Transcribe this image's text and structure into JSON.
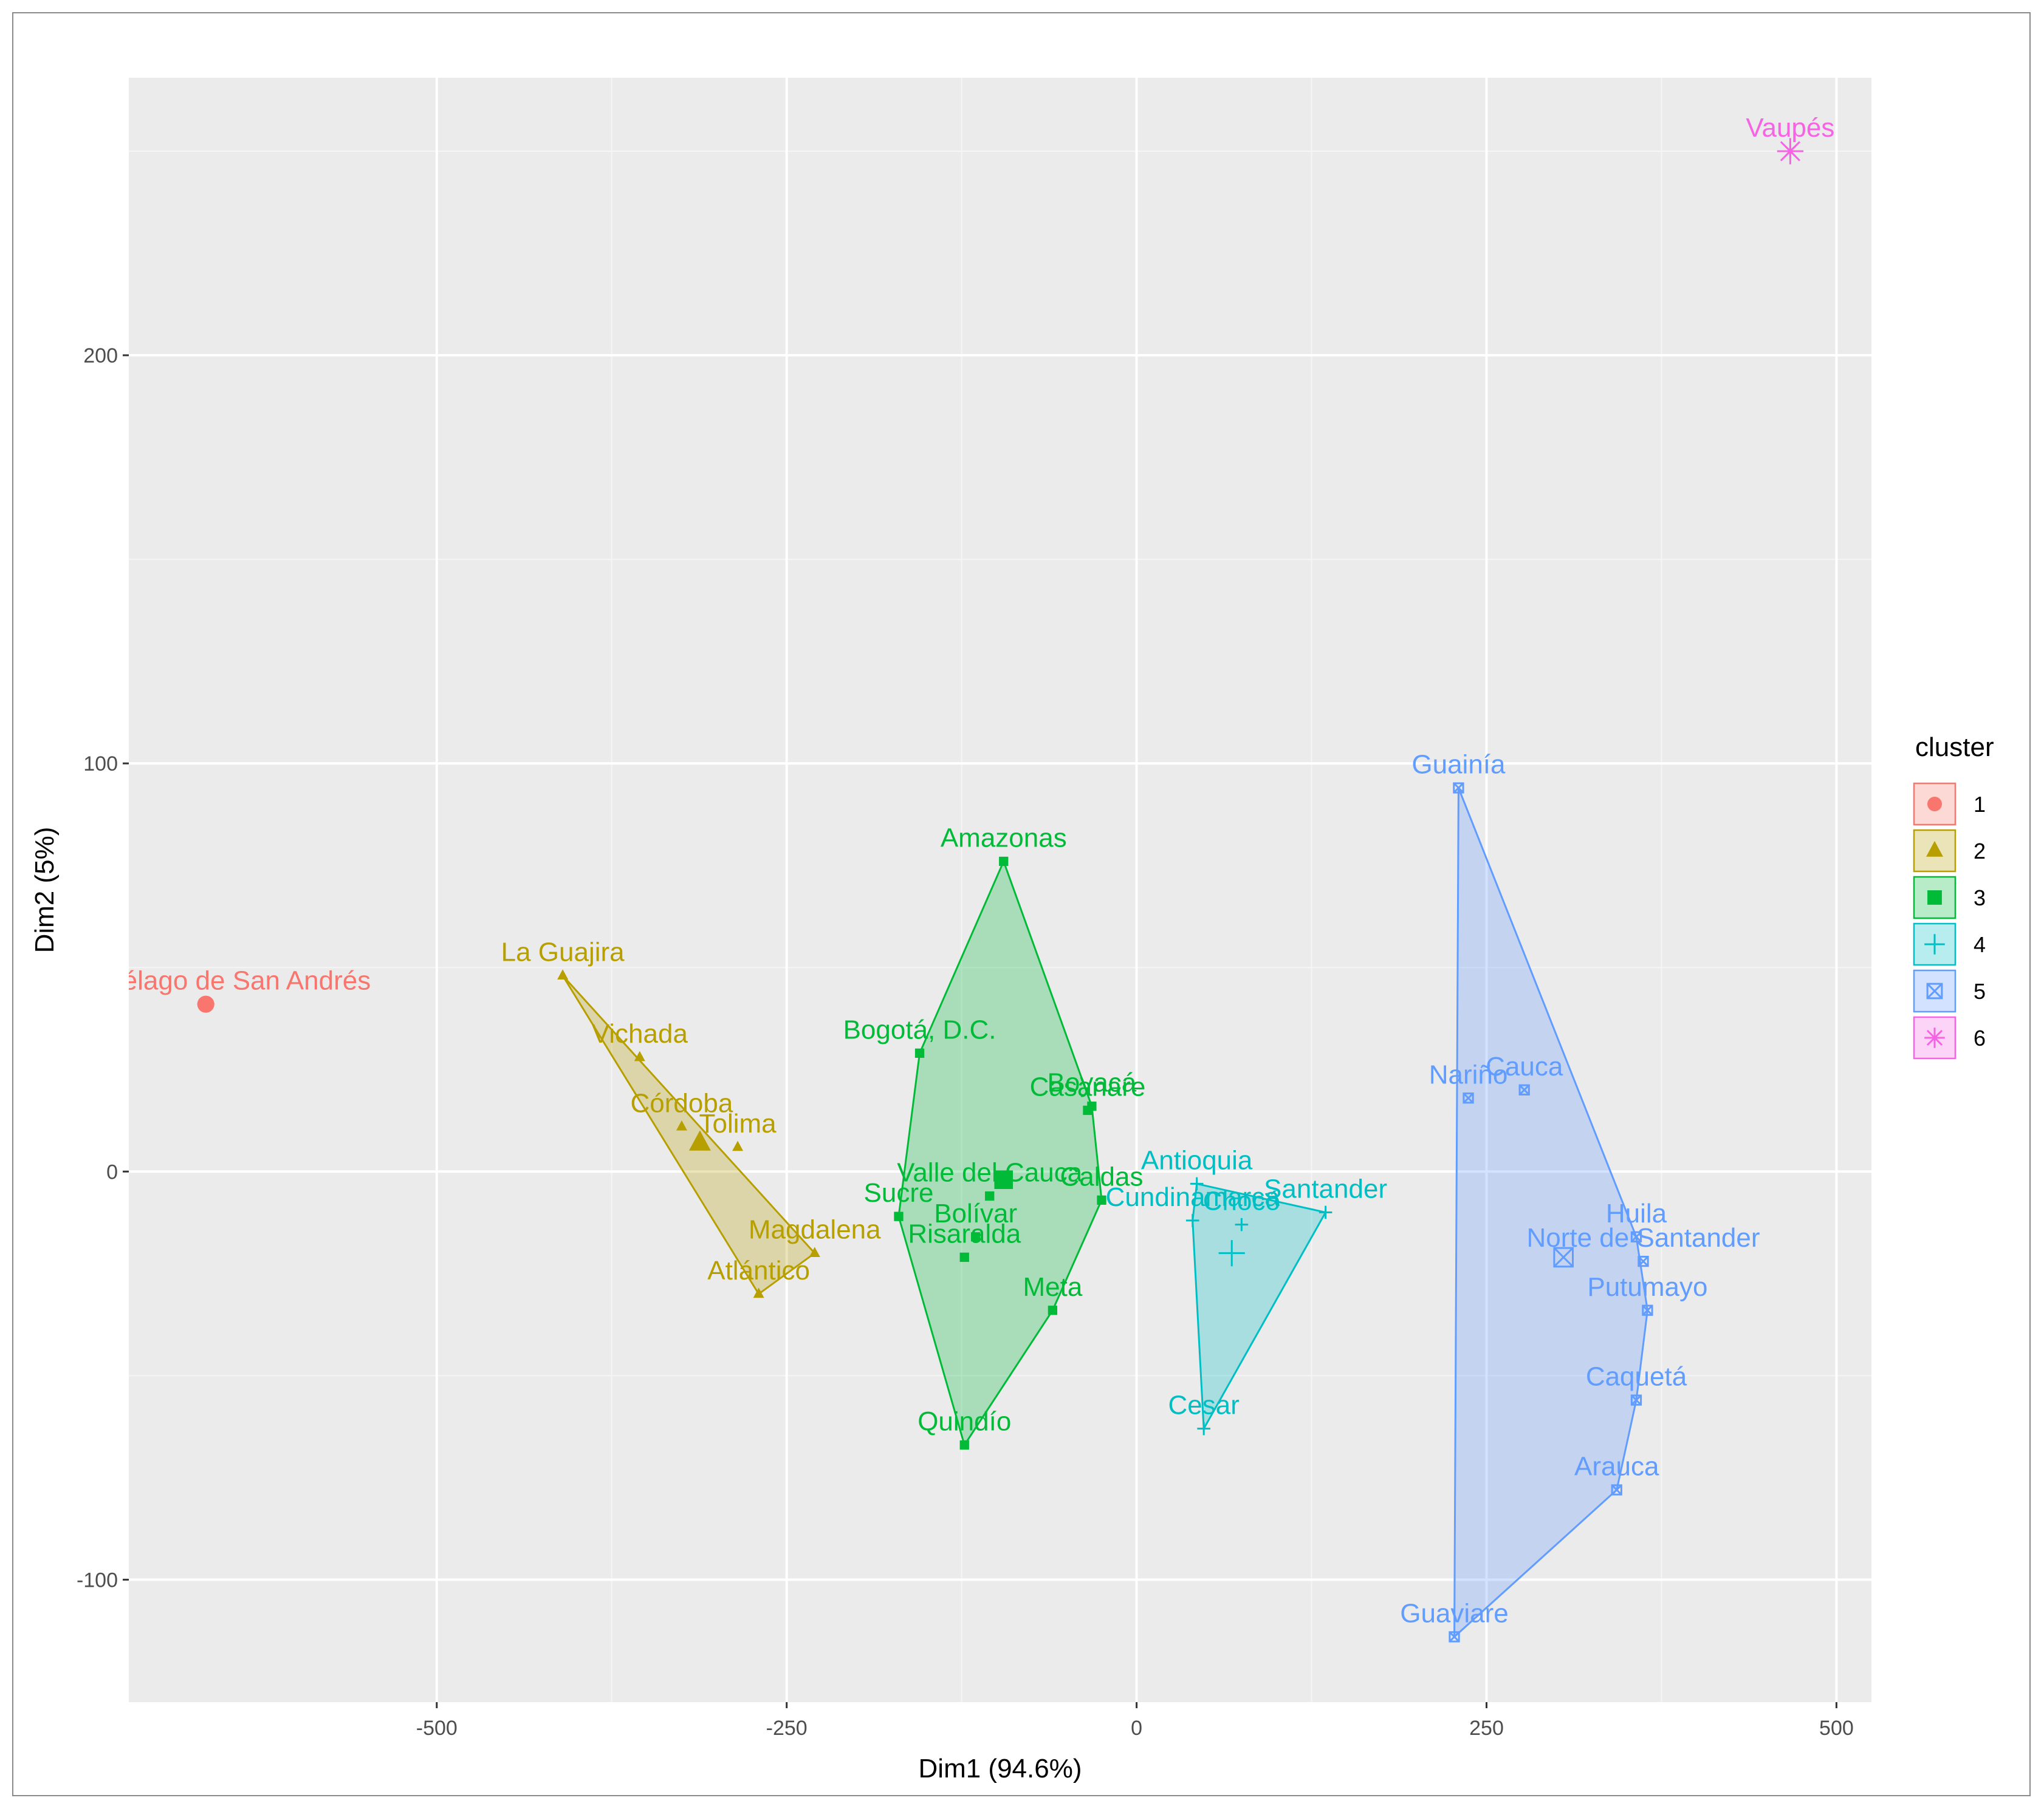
{
  "chart_data": {
    "type": "scatter",
    "title": "",
    "xlabel": "Dim1 (94.6%)",
    "ylabel": "Dim2 (5%)",
    "xlim": [
      -720,
      525
    ],
    "ylim": [
      -130,
      268
    ],
    "xticks": [
      -500,
      -250,
      0,
      250,
      500
    ],
    "yticks": [
      -100,
      0,
      100,
      200
    ],
    "grid": true,
    "legend": {
      "title": "cluster",
      "placement": "right"
    },
    "clusters": [
      {
        "id": "1",
        "color": "#F8766D",
        "shape": "circle",
        "centroid": [
          -665,
          41
        ],
        "hull": [],
        "points": [
          {
            "name": "Archipiélago de San Andrés",
            "x": -665,
            "y": 41
          }
        ]
      },
      {
        "id": "2",
        "color": "#B79F00",
        "shape": "triangle",
        "centroid": [
          -312,
          7
        ],
        "hull": [
          [
            -410,
            48
          ],
          [
            -270,
            -30
          ],
          [
            -230,
            -20
          ]
        ],
        "points": [
          {
            "name": "La Guajira",
            "x": -410,
            "y": 48
          },
          {
            "name": "Vichada",
            "x": -355,
            "y": 28
          },
          {
            "name": "Córdoba",
            "x": -325,
            "y": 11
          },
          {
            "name": "Tolima",
            "x": -285,
            "y": 6
          },
          {
            "name": "Magdalena",
            "x": -230,
            "y": -20
          },
          {
            "name": "Atlántico",
            "x": -270,
            "y": -30
          }
        ]
      },
      {
        "id": "3",
        "color": "#00BA38",
        "shape": "square",
        "centroid": [
          -95,
          -2
        ],
        "hull": [
          [
            -95,
            76
          ],
          [
            -155,
            29
          ],
          [
            -170,
            -11
          ],
          [
            -123,
            -67
          ],
          [
            -60,
            -34
          ],
          [
            -25,
            -7
          ],
          [
            -32,
            16
          ]
        ],
        "points": [
          {
            "name": "Amazonas",
            "x": -95,
            "y": 76
          },
          {
            "name": "Bogotá, D.C.",
            "x": -155,
            "y": 29
          },
          {
            "name": "Boyacá",
            "x": -32,
            "y": 16
          },
          {
            "name": "Casanare",
            "x": -35,
            "y": 15
          },
          {
            "name": "Valle del Cauca",
            "x": -105,
            "y": -6
          },
          {
            "name": "Caldas",
            "x": -25,
            "y": -7
          },
          {
            "name": "Sucre",
            "x": -170,
            "y": -11
          },
          {
            "name": "Bolívar",
            "x": -115,
            "y": -16
          },
          {
            "name": "Risaralda",
            "x": -123,
            "y": -21
          },
          {
            "name": "Meta",
            "x": -60,
            "y": -34
          },
          {
            "name": "Quindío",
            "x": -123,
            "y": -67
          }
        ]
      },
      {
        "id": "4",
        "color": "#00BFC4",
        "shape": "plus",
        "centroid": [
          68,
          -20
        ],
        "hull": [
          [
            43,
            -3
          ],
          [
            135,
            -10
          ],
          [
            48,
            -63
          ],
          [
            40,
            -12
          ]
        ],
        "points": [
          {
            "name": "Antioquia",
            "x": 43,
            "y": -3
          },
          {
            "name": "Cundinamarca",
            "x": 40,
            "y": -12
          },
          {
            "name": "Chocó",
            "x": 75,
            "y": -13
          },
          {
            "name": "Santander",
            "x": 135,
            "y": -10
          },
          {
            "name": "Cesar",
            "x": 48,
            "y": -63
          }
        ]
      },
      {
        "id": "5",
        "color": "#619CFF",
        "shape": "square-cross",
        "centroid": [
          305,
          -21
        ],
        "hull": [
          [
            230,
            94
          ],
          [
            357,
            -16
          ],
          [
            365,
            -34
          ],
          [
            357,
            -56
          ],
          [
            343,
            -78
          ],
          [
            227,
            -114
          ]
        ],
        "points": [
          {
            "name": "Guainía",
            "x": 230,
            "y": 94
          },
          {
            "name": "Nariño",
            "x": 237,
            "y": 18
          },
          {
            "name": "Cauca",
            "x": 277,
            "y": 20
          },
          {
            "name": "Huila",
            "x": 357,
            "y": -16
          },
          {
            "name": "Norte de Santander",
            "x": 362,
            "y": -22
          },
          {
            "name": "Putumayo",
            "x": 365,
            "y": -34
          },
          {
            "name": "Caquetá",
            "x": 357,
            "y": -56
          },
          {
            "name": "Arauca",
            "x": 343,
            "y": -78
          },
          {
            "name": "Guaviare",
            "x": 227,
            "y": -114
          }
        ]
      },
      {
        "id": "6",
        "color": "#F564E3",
        "shape": "asterisk",
        "centroid": [
          467,
          250
        ],
        "hull": [],
        "points": [
          {
            "name": "Vaupés",
            "x": 467,
            "y": 250
          }
        ]
      }
    ]
  }
}
